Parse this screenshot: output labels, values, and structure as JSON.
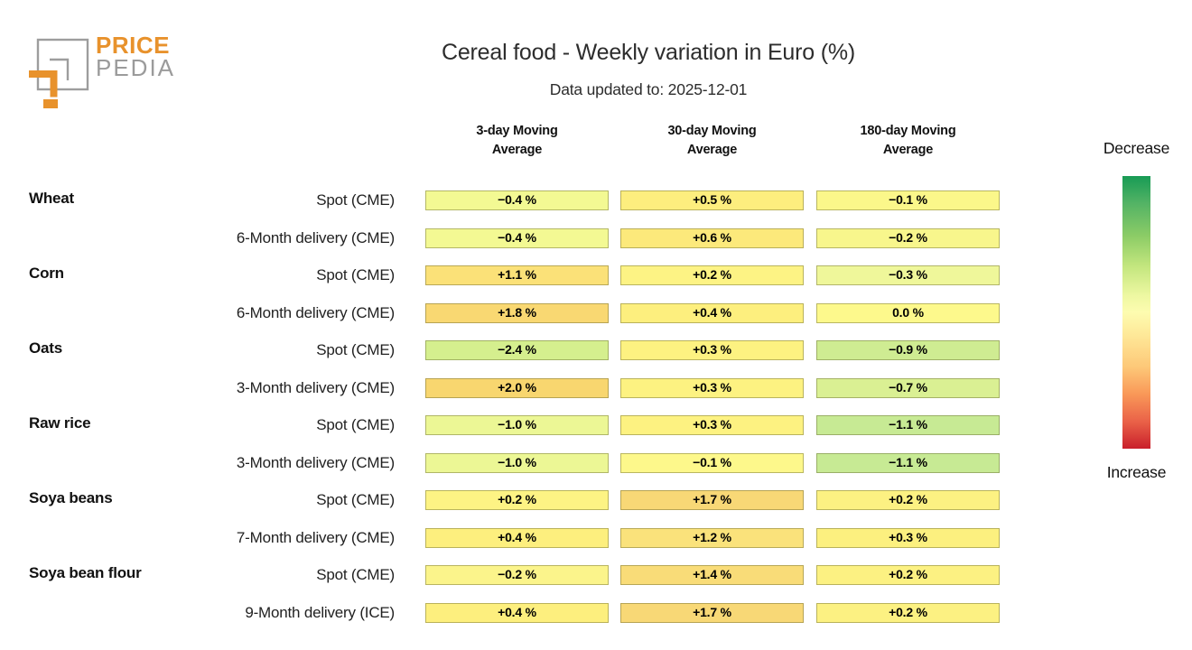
{
  "logo": {
    "word_top": "PRICE",
    "word_bottom": "PEDIA",
    "orange": "#e8922c",
    "gray": "#9b9b9b"
  },
  "header": {
    "title": "Cereal food - Weekly variation in Euro (%)",
    "subtitle": "Data updated to: 2025-12-01"
  },
  "legend": {
    "top_label": "Decrease",
    "bottom_label": "Increase",
    "gradient_stops": [
      "#189b55 0%",
      "#53b365 10%",
      "#8ccc66 22%",
      "#c3e67e 33%",
      "#eef8a2 44%",
      "#fdfcb0 50%",
      "#fee999 58%",
      "#fdc878 70%",
      "#f99858 80%",
      "#ea6248 90%",
      "#c91f2b 100%"
    ]
  },
  "chart_data": {
    "type": "heatmap",
    "title": "Cereal food - Weekly variation in Euro (%)",
    "subtitle": "Data updated to: 2025-12-01",
    "unit": "%",
    "columns": [
      "3-day Moving\nAverage",
      "30-day Moving\nAverage",
      "180-day Moving\nAverage"
    ],
    "colorscale_note": "pale yellow = 0, green = decrease, orange/red = increase",
    "rows": [
      {
        "group": "Wheat",
        "contract": "Spot (CME)",
        "values": [
          -0.4,
          0.5,
          -0.1
        ],
        "labels": [
          "−0.4 %",
          "+0.5 %",
          "−0.1 %"
        ],
        "colors": [
          "#f3f993",
          "#fdee7e",
          "#fbf78a"
        ]
      },
      {
        "group": "",
        "contract": "6-Month delivery (CME)",
        "values": [
          -0.4,
          0.6,
          -0.2
        ],
        "labels": [
          "−0.4 %",
          "+0.6 %",
          "−0.2 %"
        ],
        "colors": [
          "#f3f993",
          "#fce97b",
          "#f8f68c"
        ]
      },
      {
        "group": "Corn",
        "contract": "Spot (CME)",
        "values": [
          1.1,
          0.2,
          -0.3
        ],
        "labels": [
          "+1.1 %",
          "+0.2 %",
          "−0.3 %"
        ],
        "colors": [
          "#fbe178",
          "#fdf384",
          "#eff79a"
        ]
      },
      {
        "group": "",
        "contract": "6-Month delivery (CME)",
        "values": [
          1.8,
          0.4,
          0.0
        ],
        "labels": [
          "+1.8 %",
          "+0.4 %",
          "0.0 %"
        ],
        "colors": [
          "#f9d872",
          "#fdef7e",
          "#fdf98c"
        ]
      },
      {
        "group": "Oats",
        "contract": "Spot (CME)",
        "values": [
          -2.4,
          0.3,
          -0.9
        ],
        "labels": [
          "−2.4 %",
          "+0.3 %",
          "−0.9 %"
        ],
        "colors": [
          "#d5ef8e",
          "#fdf281",
          "#cfec92"
        ]
      },
      {
        "group": "",
        "contract": "3-Month delivery (CME)",
        "values": [
          2.0,
          0.3,
          -0.7
        ],
        "labels": [
          "+2.0 %",
          "+0.3 %",
          "−0.7 %"
        ],
        "colors": [
          "#f8d66f",
          "#fdf281",
          "#daf093"
        ]
      },
      {
        "group": "Raw rice",
        "contract": "Spot (CME)",
        "values": [
          -1.0,
          0.3,
          -1.1
        ],
        "labels": [
          "−1.0 %",
          "+0.3 %",
          "−1.1 %"
        ],
        "colors": [
          "#ecf795",
          "#fdf281",
          "#c7ea94"
        ]
      },
      {
        "group": "",
        "contract": "3-Month delivery (CME)",
        "values": [
          -1.0,
          -0.1,
          -1.1
        ],
        "labels": [
          "−1.0 %",
          "−0.1 %",
          "−1.1 %"
        ],
        "colors": [
          "#ecf795",
          "#fdf88b",
          "#c7ea94"
        ]
      },
      {
        "group": "Soya beans",
        "contract": "Spot (CME)",
        "values": [
          0.2,
          1.7,
          0.2
        ],
        "labels": [
          "+0.2 %",
          "+1.7 %",
          "+0.2 %"
        ],
        "colors": [
          "#fdf384",
          "#f8d876",
          "#fcf182"
        ]
      },
      {
        "group": "",
        "contract": "7-Month delivery (CME)",
        "values": [
          0.4,
          1.2,
          0.3
        ],
        "labels": [
          "+0.4 %",
          "+1.2 %",
          "+0.3 %"
        ],
        "colors": [
          "#fdef7e",
          "#fae27b",
          "#fcf07f"
        ]
      },
      {
        "group": "Soya bean flour",
        "contract": "Spot (CME)",
        "values": [
          -0.2,
          1.4,
          0.2
        ],
        "labels": [
          "−0.2 %",
          "+1.4 %",
          "+0.2 %"
        ],
        "colors": [
          "#fbf48b",
          "#f9dc78",
          "#fcf182"
        ]
      },
      {
        "group": "",
        "contract": "9-Month delivery (ICE)",
        "values": [
          0.4,
          1.7,
          0.2
        ],
        "labels": [
          "+0.4 %",
          "+1.7 %",
          "+0.2 %"
        ],
        "colors": [
          "#fdef7e",
          "#f8d876",
          "#fcf182"
        ]
      }
    ]
  }
}
